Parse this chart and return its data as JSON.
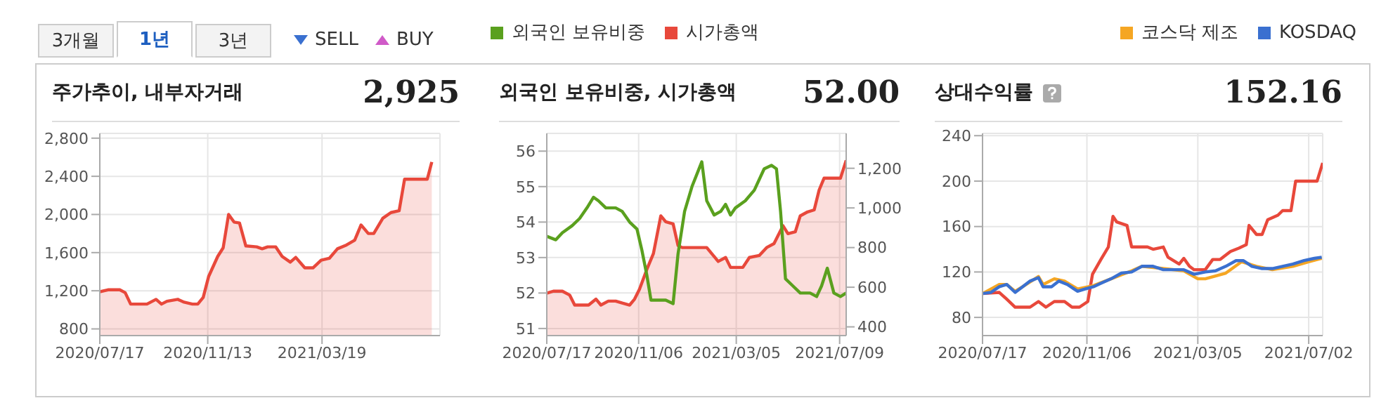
{
  "chart_data": [
    {
      "type": "area",
      "title": "주가추이, 내부자거래",
      "annotations": [
        "2,925",
        "3개월",
        "1년",
        "3년",
        "SELL",
        "BUY"
      ],
      "grid": true,
      "xlim": [
        "2020-07-17",
        "2021-07-27"
      ],
      "xticks": [
        {
          "value": "2020-07-17",
          "label": "2020/07/17"
        },
        {
          "value": "2020-11-13",
          "label": "2020/11/13"
        },
        {
          "value": "2021-03-19",
          "label": "2021/03/19"
        }
      ],
      "ylim": [
        730,
        2850
      ],
      "yticks": [
        {
          "value": 800,
          "label": "800"
        },
        {
          "value": 1200,
          "label": "1,200"
        },
        {
          "value": 1600,
          "label": "1,600"
        },
        {
          "value": 2000,
          "label": "2,000"
        },
        {
          "value": 2400,
          "label": "2,400"
        },
        {
          "value": 2800,
          "label": "2,800"
        }
      ],
      "series": [
        {
          "color": "#e8483b",
          "x": [
            "2020-07-17",
            "2020-07-26",
            "2020-08-08",
            "2020-08-14",
            "2020-08-20",
            "2020-09-01",
            "2020-09-07",
            "2020-09-17",
            "2020-09-23",
            "2020-09-29",
            "2020-10-11",
            "2020-10-18",
            "2020-10-27",
            "2020-11-02",
            "2020-11-08",
            "2020-11-14",
            "2020-11-24",
            "2020-11-30",
            "2020-12-06",
            "2020-12-12",
            "2020-12-18",
            "2020-12-25",
            "2021-01-06",
            "2021-01-12",
            "2021-01-18",
            "2021-01-27",
            "2021-02-03",
            "2021-02-12",
            "2021-02-18",
            "2021-02-28",
            "2021-03-09",
            "2021-03-18",
            "2021-03-27",
            "2021-04-05",
            "2021-04-15",
            "2021-04-24",
            "2021-05-01",
            "2021-05-09",
            "2021-05-15",
            "2021-05-25",
            "2021-06-03",
            "2021-06-12",
            "2021-06-18",
            "2021-07-01",
            "2021-07-13",
            "2021-07-18"
          ],
          "values": [
            1190,
            1210,
            1210,
            1180,
            1060,
            1060,
            1060,
            1110,
            1060,
            1090,
            1110,
            1080,
            1060,
            1060,
            1130,
            1350,
            1560,
            1650,
            2000,
            1920,
            1910,
            1670,
            1660,
            1640,
            1660,
            1660,
            1560,
            1500,
            1550,
            1440,
            1440,
            1520,
            1540,
            1640,
            1680,
            1730,
            1890,
            1800,
            1800,
            1960,
            2020,
            2040,
            2370,
            2370,
            2370,
            2550
          ]
        }
      ]
    },
    {
      "type": "line",
      "title": "외국인 보유비중, 시가총액",
      "annotations": [
        "52.00"
      ],
      "grid": true,
      "legend": "top",
      "xlim": [
        "2020-07-17",
        "2021-07-17"
      ],
      "xticks": [
        {
          "value": "2020-07-17",
          "label": "2020/07/17"
        },
        {
          "value": "2020-11-06",
          "label": "2020/11/06"
        },
        {
          "value": "2021-03-05",
          "label": "2021/03/05"
        },
        {
          "value": "2021-07-09",
          "label": "2021/07/09"
        }
      ],
      "ylim": [
        50.8,
        56.5
      ],
      "yticks": [
        51,
        52,
        53,
        54,
        55,
        56
      ],
      "y2lim": [
        356,
        1376
      ],
      "y2ticks": [
        {
          "value": 400,
          "label": "400"
        },
        {
          "value": 600,
          "label": "600"
        },
        {
          "value": 800,
          "label": "800"
        },
        {
          "value": 1000,
          "label": "1,000"
        },
        {
          "value": 1200,
          "label": "1,200"
        }
      ],
      "series": [
        {
          "name": "외국인 보유비중",
          "color": "#5aa01e",
          "x": [
            "2020-07-17",
            "2020-07-28",
            "2020-08-05",
            "2020-08-17",
            "2020-08-26",
            "2020-09-04",
            "2020-09-12",
            "2020-09-18",
            "2020-09-27",
            "2020-10-09",
            "2020-10-17",
            "2020-10-26",
            "2020-11-04",
            "2020-11-10",
            "2020-11-16",
            "2020-11-21",
            "2020-11-30",
            "2020-12-09",
            "2020-12-18",
            "2020-12-24",
            "2021-01-01",
            "2021-01-10",
            "2021-01-22",
            "2021-01-28",
            "2021-02-06",
            "2021-02-14",
            "2021-02-20",
            "2021-02-26",
            "2021-03-04",
            "2021-03-16",
            "2021-03-27",
            "2021-04-08",
            "2021-04-17",
            "2021-04-23",
            "2021-04-28",
            "2021-05-04",
            "2021-05-13",
            "2021-05-22",
            "2021-06-03",
            "2021-06-11",
            "2021-06-17",
            "2021-06-24",
            "2021-07-02",
            "2021-07-10",
            "2021-07-17"
          ],
          "values": [
            53.6,
            53.5,
            53.7,
            53.9,
            54.1,
            54.4,
            54.7,
            54.6,
            54.4,
            54.4,
            54.3,
            54.0,
            53.8,
            53.2,
            52.5,
            51.8,
            51.8,
            51.8,
            51.7,
            53.1,
            54.3,
            55.0,
            55.7,
            54.6,
            54.2,
            54.3,
            54.5,
            54.2,
            54.4,
            54.6,
            54.9,
            55.5,
            55.6,
            55.5,
            54.3,
            52.4,
            52.2,
            52.0,
            52.0,
            51.9,
            52.2,
            52.7,
            52.0,
            51.9,
            52.0
          ]
        },
        {
          "name": "시가총액",
          "type": "area",
          "axis": "y2",
          "color": "#e8483b",
          "x": [
            "2020-07-17",
            "2020-07-25",
            "2020-08-05",
            "2020-08-14",
            "2020-08-20",
            "2020-08-29",
            "2020-09-06",
            "2020-09-15",
            "2020-09-21",
            "2020-09-30",
            "2020-10-09",
            "2020-10-17",
            "2020-10-26",
            "2020-11-01",
            "2020-11-07",
            "2020-11-16",
            "2020-11-24",
            "2020-12-03",
            "2020-12-09",
            "2020-12-18",
            "2020-12-24",
            "2020-12-29",
            "2021-01-10",
            "2021-01-19",
            "2021-01-28",
            "2021-02-03",
            "2021-02-11",
            "2021-02-20",
            "2021-02-26",
            "2021-03-04",
            "2021-03-13",
            "2021-03-21",
            "2021-04-02",
            "2021-04-11",
            "2021-04-20",
            "2021-05-01",
            "2021-05-07",
            "2021-05-16",
            "2021-05-22",
            "2021-05-31",
            "2021-06-08",
            "2021-06-14",
            "2021-06-20",
            "2021-07-02",
            "2021-07-10",
            "2021-07-17"
          ],
          "values": [
            570,
            580,
            580,
            560,
            510,
            510,
            510,
            540,
            510,
            530,
            530,
            520,
            510,
            540,
            590,
            690,
            770,
            960,
            930,
            920,
            810,
            800,
            800,
            800,
            800,
            770,
            730,
            750,
            700,
            700,
            700,
            750,
            760,
            800,
            820,
            910,
            870,
            880,
            960,
            980,
            990,
            1090,
            1150,
            1150,
            1150,
            1240
          ]
        }
      ]
    },
    {
      "type": "line",
      "title": "상대수익률",
      "annotations": [
        "152.16"
      ],
      "grid": true,
      "legend": "top right",
      "xlim": [
        "2020-07-17",
        "2021-07-17"
      ],
      "xticks": [
        {
          "value": "2020-07-17",
          "label": "2020/07/17"
        },
        {
          "value": "2020-11-06",
          "label": "2020/11/06"
        },
        {
          "value": "2021-03-05",
          "label": "2021/03/05"
        },
        {
          "value": "2021-07-02",
          "label": "2021/07/02"
        }
      ],
      "ylim": [
        64,
        242
      ],
      "yticks": [
        80,
        120,
        160,
        200,
        240
      ],
      "series": [
        {
          "color": "#e8483b",
          "x": [
            "2020-07-17",
            "2020-08-04",
            "2020-08-12",
            "2020-08-21",
            "2020-09-06",
            "2020-09-15",
            "2020-09-23",
            "2020-10-02",
            "2020-10-13",
            "2020-10-21",
            "2020-10-29",
            "2020-11-07",
            "2020-11-12",
            "2020-11-21",
            "2020-11-29",
            "2020-12-04",
            "2020-12-08",
            "2020-12-19",
            "2020-12-24",
            "2021-01-10",
            "2021-01-16",
            "2021-01-27",
            "2021-02-01",
            "2021-02-13",
            "2021-02-18",
            "2021-02-24",
            "2021-03-01",
            "2021-03-13",
            "2021-03-21",
            "2021-03-29",
            "2021-04-09",
            "2021-04-18",
            "2021-04-26",
            "2021-04-29",
            "2021-05-07",
            "2021-05-13",
            "2021-05-19",
            "2021-05-30",
            "2021-06-04",
            "2021-06-13",
            "2021-06-18",
            "2021-07-02",
            "2021-07-11",
            "2021-07-17"
          ],
          "values": [
            101,
            102,
            96,
            89,
            89,
            94,
            89,
            94,
            94,
            89,
            89,
            94,
            118,
            131,
            142,
            169,
            164,
            161,
            142,
            142,
            140,
            142,
            133,
            127,
            132,
            125,
            122,
            122,
            131,
            131,
            138,
            141,
            144,
            161,
            153,
            153,
            166,
            170,
            174,
            174,
            200,
            200,
            200,
            216
          ]
        },
        {
          "name": "코스닥 제조",
          "color": "#f5a623",
          "x": [
            "2020-07-17",
            "2020-08-04",
            "2020-08-12",
            "2020-08-21",
            "2020-08-29",
            "2020-09-15",
            "2020-09-20",
            "2020-10-02",
            "2020-10-13",
            "2020-10-27",
            "2020-11-13",
            "2020-12-02",
            "2020-12-24",
            "2021-01-04",
            "2021-01-27",
            "2021-02-18",
            "2021-03-05",
            "2021-03-13",
            "2021-04-04",
            "2021-04-21",
            "2021-05-07",
            "2021-05-24",
            "2021-06-15",
            "2021-07-02",
            "2021-07-16"
          ],
          "values": [
            101,
            109,
            109,
            103,
            107,
            116,
            109,
            114,
            112,
            105,
            108,
            114,
            121,
            125,
            123,
            121,
            114,
            114,
            119,
            129,
            125,
            122,
            125,
            129,
            132
          ]
        },
        {
          "name": "KOSDAQ",
          "color": "#3a70d0",
          "x": [
            "2020-07-17",
            "2020-07-26",
            "2020-08-04",
            "2020-08-12",
            "2020-08-21",
            "2020-08-29",
            "2020-09-06",
            "2020-09-15",
            "2020-09-20",
            "2020-09-29",
            "2020-10-07",
            "2020-10-16",
            "2020-10-27",
            "2020-11-04",
            "2020-11-13",
            "2020-11-21",
            "2020-12-02",
            "2020-12-13",
            "2020-12-24",
            "2021-01-04",
            "2021-01-16",
            "2021-01-27",
            "2021-02-07",
            "2021-02-18",
            "2021-03-01",
            "2021-03-13",
            "2021-03-24",
            "2021-04-04",
            "2021-04-15",
            "2021-04-23",
            "2021-05-02",
            "2021-05-13",
            "2021-05-24",
            "2021-06-04",
            "2021-06-15",
            "2021-06-27",
            "2021-07-08",
            "2021-07-16"
          ],
          "values": [
            101,
            102,
            107,
            109,
            102,
            107,
            112,
            115,
            107,
            107,
            112,
            109,
            103,
            105,
            107,
            110,
            114,
            119,
            120,
            125,
            125,
            122,
            122,
            122,
            118,
            120,
            121,
            125,
            130,
            130,
            125,
            123,
            123,
            125,
            127,
            130,
            132,
            133
          ]
        }
      ]
    }
  ]
}
